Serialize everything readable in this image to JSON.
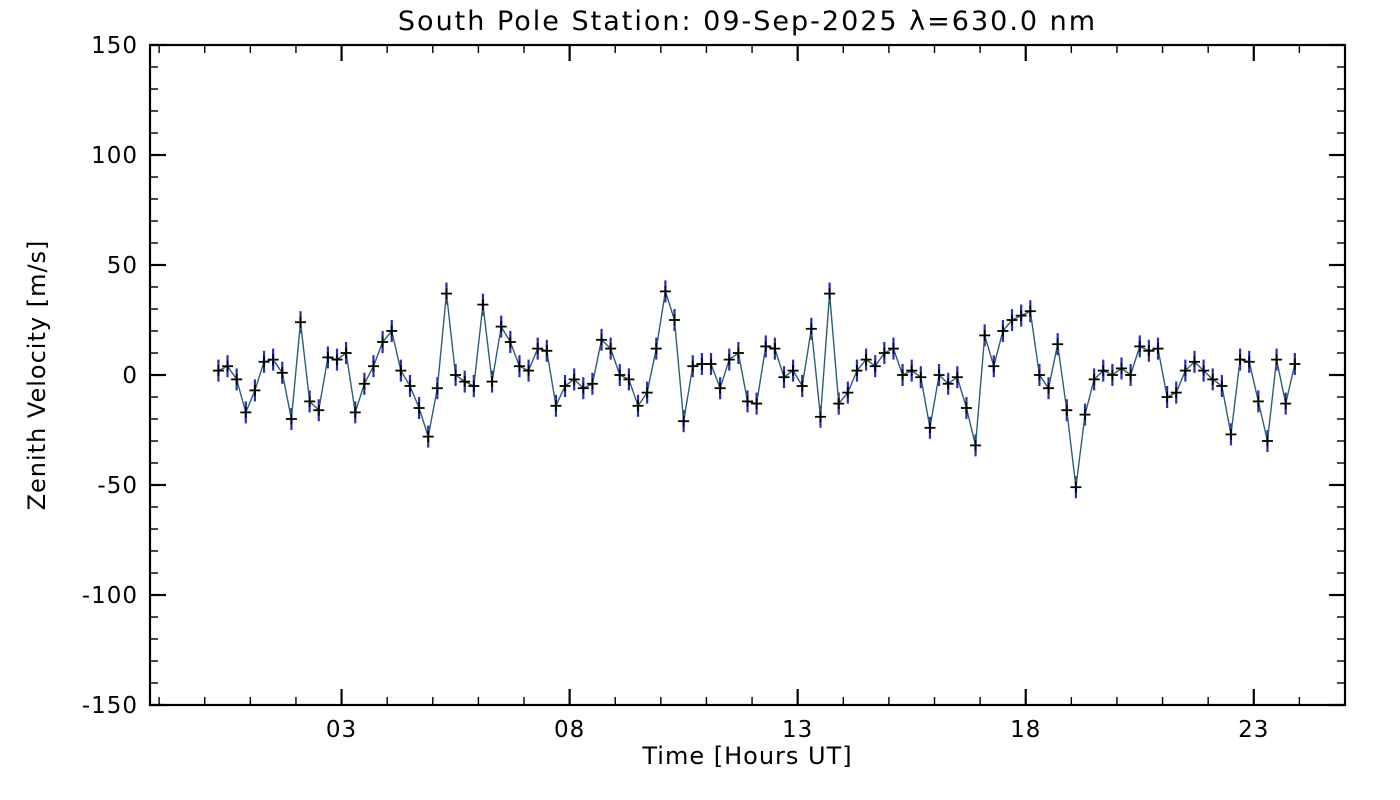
{
  "chart_data": {
    "type": "line",
    "title": "South Pole Station: 09-Sep-2025 λ=630.0 nm",
    "xlabel": "Time [Hours UT]",
    "ylabel": "Zenith Velocity [m/s]",
    "xlim": [
      -1.2,
      25.0
    ],
    "ylim": [
      -150,
      150
    ],
    "grid": false,
    "legend": false,
    "marker": "plus",
    "colors": {
      "line": "#2e5f6e",
      "marker": "#000000",
      "error_bar": "#2a2ac0",
      "axis": "#000000",
      "background": "#ffffff"
    },
    "xticks": {
      "major": [
        3,
        8,
        13,
        18,
        23
      ],
      "labels": [
        "03",
        "08",
        "13",
        "18",
        "23"
      ],
      "minor_step": 1
    },
    "yticks": {
      "major": [
        -150,
        -100,
        -50,
        0,
        50,
        100,
        150
      ],
      "labels": [
        "-150",
        "-100",
        "-50",
        "0",
        "50",
        "100",
        "150"
      ],
      "minor_step": 10
    },
    "series": [
      {
        "name": "zenith-velocity",
        "error": 5,
        "x": [
          0.3,
          0.5,
          0.7,
          0.9,
          1.1,
          1.3,
          1.5,
          1.7,
          1.9,
          2.1,
          2.3,
          2.5,
          2.7,
          2.9,
          3.1,
          3.3,
          3.5,
          3.7,
          3.9,
          4.1,
          4.3,
          4.5,
          4.7,
          4.9,
          5.1,
          5.3,
          5.5,
          5.7,
          5.9,
          6.1,
          6.3,
          6.5,
          6.7,
          6.9,
          7.1,
          7.3,
          7.5,
          7.7,
          7.9,
          8.1,
          8.3,
          8.5,
          8.7,
          8.9,
          9.1,
          9.3,
          9.5,
          9.7,
          9.9,
          10.1,
          10.3,
          10.5,
          10.7,
          10.9,
          11.1,
          11.3,
          11.5,
          11.7,
          11.9,
          12.1,
          12.3,
          12.5,
          12.7,
          12.9,
          13.1,
          13.3,
          13.5,
          13.7,
          13.9,
          14.1,
          14.3,
          14.5,
          14.7,
          14.9,
          15.1,
          15.3,
          15.5,
          15.7,
          15.9,
          16.1,
          16.3,
          16.5,
          16.7,
          16.9,
          17.1,
          17.3,
          17.5,
          17.7,
          17.9,
          18.1,
          18.3,
          18.5,
          18.7,
          18.9,
          19.1,
          19.3,
          19.5,
          19.7,
          19.9,
          20.1,
          20.3,
          20.5,
          20.7,
          20.9,
          21.1,
          21.3,
          21.5,
          21.7,
          21.9,
          22.1,
          22.3,
          22.5,
          22.7,
          22.9,
          23.1,
          23.3,
          23.5,
          23.7,
          23.9
        ],
        "y": [
          2,
          4,
          -2,
          -17,
          -7,
          6,
          7,
          1,
          -20,
          24,
          -12,
          -16,
          8,
          7,
          10,
          -17,
          -4,
          4,
          15,
          20,
          2,
          -5,
          -15,
          -28,
          -6,
          37,
          0,
          -3,
          -5,
          32,
          -3,
          22,
          15,
          4,
          2,
          12,
          11,
          -14,
          -5,
          -2,
          -6,
          -4,
          16,
          12,
          0,
          -2,
          -14,
          -8,
          12,
          38,
          25,
          -21,
          4,
          5,
          5,
          -6,
          7,
          10,
          -12,
          -13,
          13,
          12,
          -1,
          2,
          -5,
          21,
          -19,
          37,
          -13,
          -8,
          2,
          7,
          4,
          10,
          12,
          0,
          2,
          -1,
          -24,
          0,
          -4,
          -1,
          -15,
          -32,
          18,
          4,
          20,
          25,
          27,
          29,
          0,
          -6,
          14,
          -16,
          -51,
          -18,
          -2,
          2,
          0,
          3,
          0,
          13,
          11,
          12,
          -10,
          -8,
          2,
          6,
          2,
          -2,
          -5,
          -27,
          7,
          6,
          -12,
          -30,
          7,
          -13,
          5
        ]
      }
    ]
  }
}
